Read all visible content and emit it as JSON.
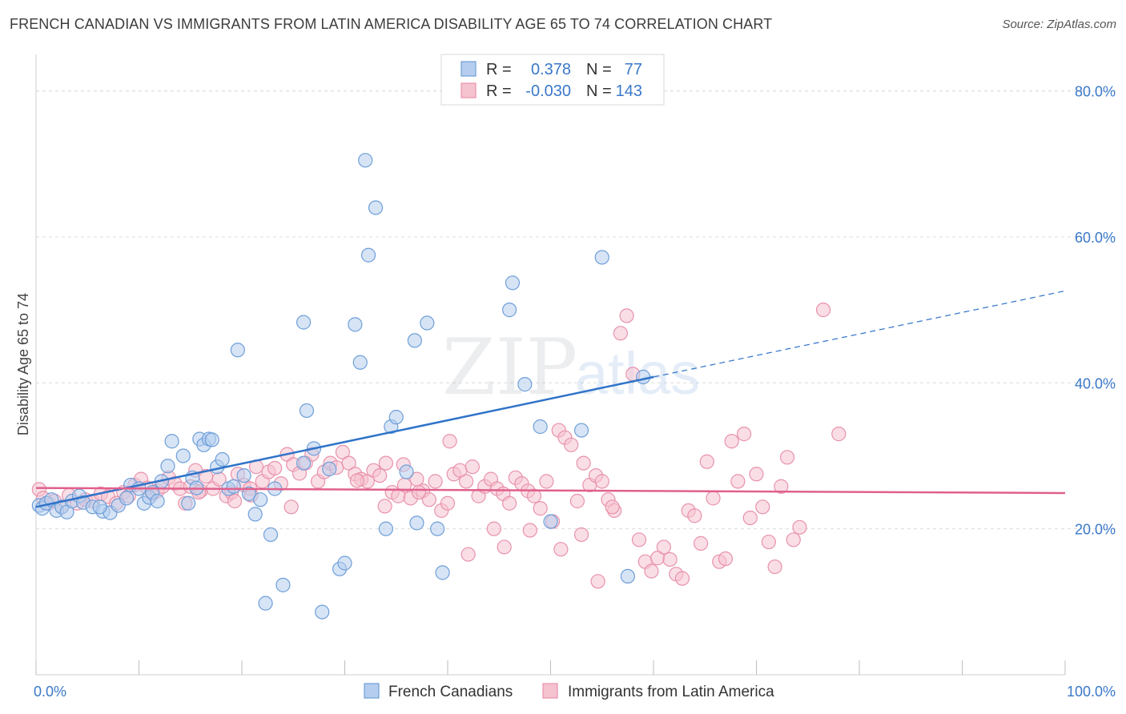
{
  "header": {
    "title": "FRENCH CANADIAN VS IMMIGRANTS FROM LATIN AMERICA DISABILITY AGE 65 TO 74 CORRELATION CHART",
    "source": "Source: ZipAtlas.com"
  },
  "watermark": {
    "zip": "ZIP",
    "atlas": "atlas"
  },
  "chart_data": {
    "type": "scatter",
    "ylabel": "Disability Age 65 to 74",
    "xlim": [
      0,
      100
    ],
    "ylim": [
      0,
      85
    ],
    "y_ticks": [
      20,
      40,
      60,
      80
    ],
    "y_tick_labels": [
      "20.0%",
      "40.0%",
      "60.0%",
      "80.0%"
    ],
    "x_tick_labels": [
      "0.0%",
      "100.0%"
    ],
    "grid": true,
    "legend_position": "top-center",
    "stats_legend": [
      {
        "r_label": "R =",
        "r_value": "0.378",
        "n_label": "N =",
        "n_value": "77"
      },
      {
        "r_label": "R =",
        "r_value": "-0.030",
        "n_label": "N =",
        "n_value": "143"
      }
    ],
    "series": [
      {
        "name": "French Canadians",
        "color": "#6f9fd8",
        "fill": "#b5cdee",
        "trend_color": "#2f73c9",
        "trend": {
          "x0": 0,
          "y0": 23.0,
          "x1": 60,
          "y1": 40.8,
          "dash_to": 100,
          "dash_y": 52.6
        },
        "points": [
          [
            0.3,
            23.2
          ],
          [
            0.6,
            22.8
          ],
          [
            1.0,
            23.5
          ],
          [
            1.5,
            24.0
          ],
          [
            2.0,
            22.5
          ],
          [
            2.5,
            23.0
          ],
          [
            3.0,
            22.3
          ],
          [
            3.5,
            23.8
          ],
          [
            4.2,
            24.5
          ],
          [
            4.6,
            23.6
          ],
          [
            5.5,
            23.0
          ],
          [
            6.5,
            22.4
          ],
          [
            7.2,
            22.2
          ],
          [
            8.0,
            23.2
          ],
          [
            8.8,
            24.2
          ],
          [
            9.2,
            26.0
          ],
          [
            10.0,
            25.5
          ],
          [
            10.5,
            23.5
          ],
          [
            11.0,
            24.3
          ],
          [
            11.3,
            25.0
          ],
          [
            11.8,
            23.8
          ],
          [
            12.2,
            26.5
          ],
          [
            12.8,
            28.6
          ],
          [
            13.2,
            32.0
          ],
          [
            14.3,
            30.0
          ],
          [
            14.8,
            23.5
          ],
          [
            15.2,
            27.0
          ],
          [
            15.6,
            25.6
          ],
          [
            15.9,
            32.3
          ],
          [
            16.3,
            31.5
          ],
          [
            16.8,
            32.3
          ],
          [
            17.1,
            32.2
          ],
          [
            17.6,
            28.5
          ],
          [
            18.1,
            29.5
          ],
          [
            18.7,
            25.5
          ],
          [
            19.2,
            25.8
          ],
          [
            19.6,
            44.5
          ],
          [
            20.2,
            27.3
          ],
          [
            20.7,
            24.8
          ],
          [
            21.3,
            22.0
          ],
          [
            21.8,
            24.0
          ],
          [
            22.8,
            19.2
          ],
          [
            23.2,
            25.5
          ],
          [
            24.0,
            12.3
          ],
          [
            22.3,
            9.8
          ],
          [
            26.0,
            48.3
          ],
          [
            26.3,
            36.2
          ],
          [
            26.0,
            29.0
          ],
          [
            27.0,
            31.0
          ],
          [
            27.8,
            8.6
          ],
          [
            29.5,
            14.5
          ],
          [
            30.0,
            15.3
          ],
          [
            31.0,
            48.0
          ],
          [
            31.5,
            42.8
          ],
          [
            32.0,
            70.5
          ],
          [
            32.3,
            57.5
          ],
          [
            33.0,
            64.0
          ],
          [
            34.0,
            20.0
          ],
          [
            34.5,
            34.0
          ],
          [
            35.0,
            35.3
          ],
          [
            36.0,
            27.8
          ],
          [
            36.8,
            45.8
          ],
          [
            37.0,
            20.8
          ],
          [
            38.0,
            48.2
          ],
          [
            39.0,
            20.0
          ],
          [
            39.5,
            14.0
          ],
          [
            46.0,
            50.0
          ],
          [
            46.3,
            53.7
          ],
          [
            47.5,
            39.8
          ],
          [
            49.0,
            34.0
          ],
          [
            50.0,
            21.0
          ],
          [
            53.0,
            33.5
          ],
          [
            55.0,
            57.2
          ],
          [
            57.5,
            13.5
          ],
          [
            59.0,
            40.8
          ],
          [
            28.5,
            28.2
          ],
          [
            6.2,
            23.0
          ]
        ]
      },
      {
        "name": "Immigrants from Latin America",
        "color": "#e892ac",
        "fill": "#f5c2d0",
        "trend_color": "#e0608d",
        "trend": {
          "x0": 0,
          "y0": 25.6,
          "x1": 100,
          "y1": 24.9
        },
        "points": [
          [
            0.3,
            25.4
          ],
          [
            0.7,
            24.2
          ],
          [
            1.2,
            23.5
          ],
          [
            1.8,
            23.8
          ],
          [
            2.5,
            23.0
          ],
          [
            3.2,
            24.6
          ],
          [
            4.0,
            23.5
          ],
          [
            4.8,
            24.0
          ],
          [
            5.5,
            23.8
          ],
          [
            6.3,
            24.8
          ],
          [
            7.0,
            24.4
          ],
          [
            7.8,
            23.5
          ],
          [
            8.5,
            25.0
          ],
          [
            9.0,
            24.5
          ],
          [
            9.6,
            26.0
          ],
          [
            10.2,
            26.8
          ],
          [
            10.8,
            25.6
          ],
          [
            11.3,
            24.8
          ],
          [
            11.8,
            25.2
          ],
          [
            12.3,
            25.8
          ],
          [
            12.9,
            27.0
          ],
          [
            13.5,
            26.2
          ],
          [
            14.0,
            25.5
          ],
          [
            14.5,
            23.5
          ],
          [
            15.0,
            25.8
          ],
          [
            15.5,
            28.0
          ],
          [
            16.0,
            25.2
          ],
          [
            16.5,
            27.2
          ],
          [
            17.2,
            25.5
          ],
          [
            17.8,
            26.8
          ],
          [
            18.5,
            24.5
          ],
          [
            19.0,
            25.0
          ],
          [
            19.6,
            27.5
          ],
          [
            20.2,
            26.0
          ],
          [
            20.8,
            25.5
          ],
          [
            21.4,
            28.5
          ],
          [
            22.0,
            26.5
          ],
          [
            22.6,
            27.8
          ],
          [
            23.2,
            28.3
          ],
          [
            23.8,
            26.2
          ],
          [
            24.4,
            30.2
          ],
          [
            25.0,
            28.8
          ],
          [
            25.6,
            27.6
          ],
          [
            26.2,
            29.0
          ],
          [
            26.8,
            30.2
          ],
          [
            27.4,
            26.5
          ],
          [
            28.0,
            27.8
          ],
          [
            28.6,
            29.0
          ],
          [
            29.2,
            28.4
          ],
          [
            29.8,
            30.5
          ],
          [
            30.4,
            29.0
          ],
          [
            31.0,
            27.5
          ],
          [
            31.6,
            26.8
          ],
          [
            32.2,
            26.5
          ],
          [
            32.8,
            28.0
          ],
          [
            33.4,
            27.3
          ],
          [
            34.0,
            29.0
          ],
          [
            34.6,
            25.0
          ],
          [
            35.2,
            24.5
          ],
          [
            35.8,
            26.0
          ],
          [
            36.4,
            24.2
          ],
          [
            37.0,
            26.8
          ],
          [
            37.6,
            25.2
          ],
          [
            38.2,
            24.0
          ],
          [
            38.8,
            26.5
          ],
          [
            39.4,
            22.5
          ],
          [
            40.0,
            23.5
          ],
          [
            40.6,
            27.5
          ],
          [
            41.2,
            28.0
          ],
          [
            41.8,
            26.5
          ],
          [
            42.4,
            28.5
          ],
          [
            43.0,
            24.5
          ],
          [
            43.6,
            25.8
          ],
          [
            44.2,
            26.8
          ],
          [
            44.8,
            25.5
          ],
          [
            45.4,
            24.8
          ],
          [
            46.0,
            23.5
          ],
          [
            46.6,
            27.0
          ],
          [
            47.2,
            26.2
          ],
          [
            47.8,
            25.2
          ],
          [
            48.4,
            24.5
          ],
          [
            49.0,
            22.8
          ],
          [
            49.6,
            26.5
          ],
          [
            50.2,
            21.0
          ],
          [
            50.8,
            33.5
          ],
          [
            51.4,
            32.5
          ],
          [
            52.0,
            31.5
          ],
          [
            52.6,
            23.8
          ],
          [
            53.2,
            29.0
          ],
          [
            53.8,
            26.0
          ],
          [
            54.4,
            27.3
          ],
          [
            55.0,
            26.5
          ],
          [
            55.6,
            24.0
          ],
          [
            56.2,
            22.5
          ],
          [
            56.8,
            46.8
          ],
          [
            57.4,
            49.2
          ],
          [
            58.0,
            41.2
          ],
          [
            58.6,
            18.5
          ],
          [
            59.2,
            15.5
          ],
          [
            59.8,
            14.2
          ],
          [
            60.4,
            16.0
          ],
          [
            61.0,
            17.5
          ],
          [
            61.6,
            15.8
          ],
          [
            62.2,
            13.8
          ],
          [
            62.8,
            13.2
          ],
          [
            63.4,
            22.5
          ],
          [
            64.0,
            21.8
          ],
          [
            64.6,
            18.0
          ],
          [
            65.2,
            29.2
          ],
          [
            65.8,
            24.2
          ],
          [
            66.4,
            15.5
          ],
          [
            67.0,
            15.9
          ],
          [
            67.6,
            32.0
          ],
          [
            68.2,
            26.5
          ],
          [
            68.8,
            33.0
          ],
          [
            69.4,
            21.5
          ],
          [
            70.0,
            27.5
          ],
          [
            70.6,
            23.0
          ],
          [
            71.2,
            18.2
          ],
          [
            71.8,
            14.8
          ],
          [
            72.4,
            25.8
          ],
          [
            73.0,
            29.8
          ],
          [
            73.6,
            18.5
          ],
          [
            74.2,
            20.2
          ],
          [
            76.5,
            50.0
          ],
          [
            78.0,
            33.0
          ],
          [
            40.2,
            32.0
          ],
          [
            44.5,
            20.0
          ],
          [
            45.5,
            17.5
          ],
          [
            48.0,
            19.8
          ],
          [
            35.7,
            28.8
          ],
          [
            37.2,
            25.0
          ],
          [
            31.2,
            26.6
          ],
          [
            19.3,
            23.8
          ],
          [
            15.8,
            25.0
          ],
          [
            24.8,
            23.0
          ],
          [
            53.0,
            19.2
          ],
          [
            51.0,
            17.2
          ],
          [
            54.6,
            12.8
          ],
          [
            42.0,
            16.5
          ],
          [
            56.0,
            23.0
          ],
          [
            20.9,
            24.6
          ],
          [
            33.9,
            23.1
          ]
        ]
      }
    ]
  },
  "bottom_legend": [
    "French Canadians",
    "Immigrants from Latin America"
  ]
}
